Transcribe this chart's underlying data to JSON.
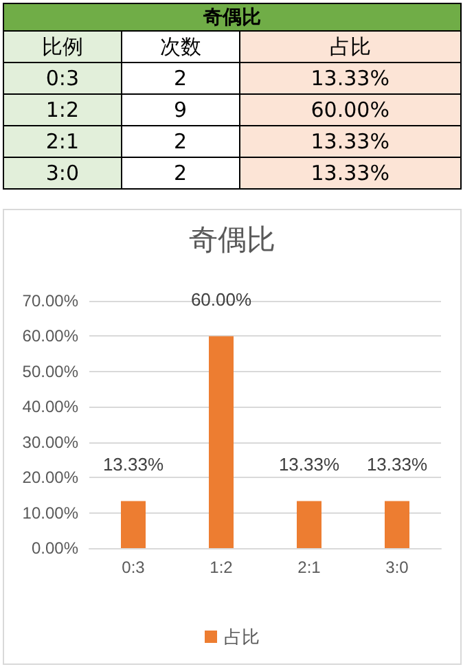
{
  "chart_data": [
    {
      "type": "other",
      "title": "奇偶比",
      "ylabel": "比例",
      "categories": [
        "次数",
        "占比"
      ],
      "y_categories": [
        "0:3",
        "1:2",
        "2:1",
        "3:0"
      ],
      "cell_labels": [
        [
          "2",
          "13.33%"
        ],
        [
          "9",
          "60.00%"
        ],
        [
          "2",
          "13.33%"
        ],
        [
          "2",
          "13.33%"
        ]
      ]
    },
    {
      "type": "bar",
      "title": "奇偶比",
      "categories": [
        "0:3",
        "1:2",
        "2:1",
        "3:0"
      ],
      "series": [
        {
          "name": "占比",
          "color": "#ed7d31",
          "values": [
            13.33,
            60.0,
            13.33,
            13.33
          ],
          "value_labels": [
            "13.33%",
            "60.00%",
            "13.33%",
            "13.33%"
          ]
        }
      ],
      "ylim": [
        0,
        70
      ],
      "yticks": [
        {
          "value": 0,
          "label": "0.00%"
        },
        {
          "value": 10,
          "label": "10.00%"
        },
        {
          "value": 20,
          "label": "20.00%"
        },
        {
          "value": 30,
          "label": "30.00%"
        },
        {
          "value": 40,
          "label": "40.00%"
        },
        {
          "value": 50,
          "label": "50.00%"
        },
        {
          "value": 60,
          "label": "60.00%"
        },
        {
          "value": 70,
          "label": "70.00%"
        }
      ],
      "grid": "y",
      "legend": "bottom"
    }
  ]
}
